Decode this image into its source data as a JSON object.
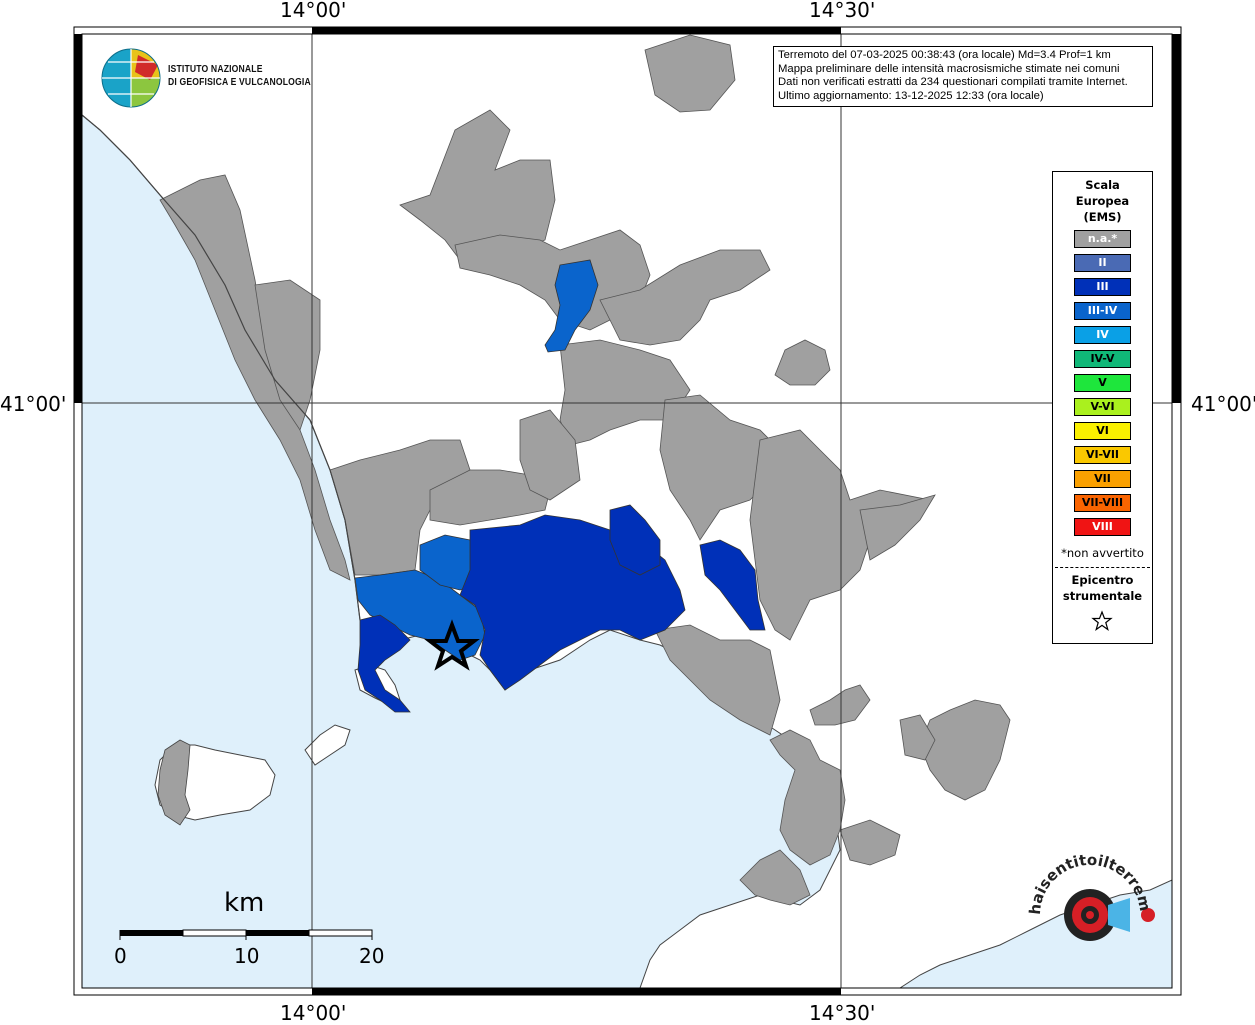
{
  "map": {
    "coords": {
      "lon_left": "14°00'",
      "lon_right": "14°30'",
      "lat": "41°00'"
    },
    "info": {
      "line1": "Terremoto del 07-03-2025 00:38:43 (ora locale) Md=3.4 Prof=1 km",
      "line2": "Mappa preliminare delle intensità macrosismiche stimate nei comuni",
      "line3": "Dati non verificati estratti da 234 questionari compilati tramite Internet.",
      "line4": "Ultimo aggiornamento: 13-12-2025 12:33 (ora locale)"
    },
    "logo": {
      "line1": "ISTITUTO NAZIONALE",
      "line2": "DI GEOFISICA E VULCANOLOGIA"
    },
    "legend": {
      "title1": "Scala",
      "title2": "Europea",
      "title3": "(EMS)",
      "items": [
        {
          "label": "n.a.*",
          "color": "#a0a0a0",
          "text_color": "#ffffff"
        },
        {
          "label": "II",
          "color": "#4a6ab4",
          "text_color": "#ffffff"
        },
        {
          "label": "III",
          "color": "#0030b8",
          "text_color": "#ffffff"
        },
        {
          "label": "III-IV",
          "color": "#0a64cc",
          "text_color": "#ffffff"
        },
        {
          "label": "IV",
          "color": "#0aa0e6",
          "text_color": "#ffffff"
        },
        {
          "label": "IV-V",
          "color": "#10b878",
          "text_color": "#000000"
        },
        {
          "label": "V",
          "color": "#1ee63c",
          "text_color": "#000000"
        },
        {
          "label": "V-VI",
          "color": "#aaf01e",
          "text_color": "#000000"
        },
        {
          "label": "VI",
          "color": "#faf000",
          "text_color": "#000000"
        },
        {
          "label": "VI-VII",
          "color": "#fac800",
          "text_color": "#000000"
        },
        {
          "label": "VII",
          "color": "#faa000",
          "text_color": "#000000"
        },
        {
          "label": "VII-VIII",
          "color": "#fa6400",
          "text_color": "#000000"
        },
        {
          "label": "VIII",
          "color": "#f01414",
          "text_color": "#ffffff"
        }
      ],
      "note": "*non avvertito",
      "epi1": "Epicentro",
      "epi2": "strumentale"
    },
    "scale": {
      "unit": "km",
      "labels": [
        "0",
        "10",
        "20"
      ]
    },
    "watermark": "www.haisentitoilterremoto.it",
    "colors": {
      "sea": "#dff0fb",
      "land_white": "#ffffff",
      "na": "#a0a0a0",
      "iii": "#0030b8",
      "iii_iv": "#0a64cc"
    }
  }
}
